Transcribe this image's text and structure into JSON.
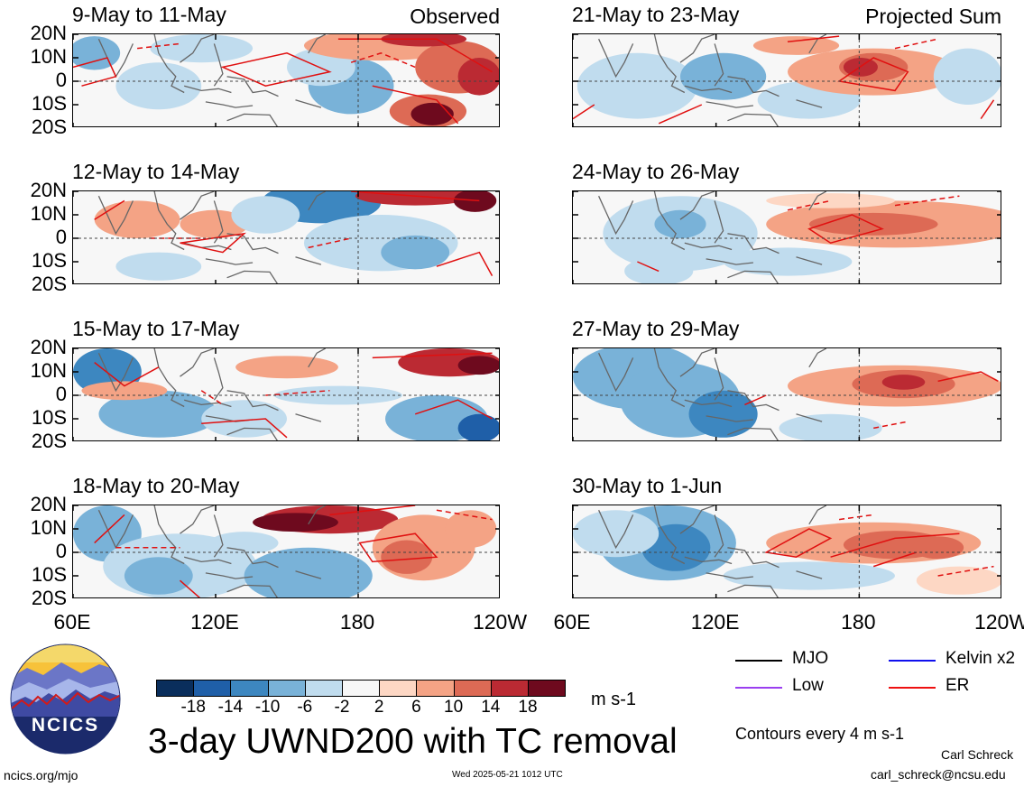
{
  "figure": {
    "title": "3-day UWND200 with TC removal",
    "units": "m s-1",
    "contour_note": "Contours every 4 m s-1",
    "footer_left": "ncics.org/mjo",
    "footer_center": "Wed 2025-05-21 1012 UTC",
    "author": "Carl Schreck",
    "email": "carl_schreck@ncsu.edu",
    "logo_text": "NCICS"
  },
  "axes": {
    "lat_labels": [
      "20N",
      "10N",
      "0",
      "10S",
      "20S"
    ],
    "lon_labels": [
      "60E",
      "120E",
      "180",
      "120W"
    ]
  },
  "panels": [
    {
      "title": "9-May to 11-May",
      "tag": "Observed",
      "kind": "observed"
    },
    {
      "title": "12-May to 14-May",
      "tag": "",
      "kind": "observed"
    },
    {
      "title": "15-May to 17-May",
      "tag": "",
      "kind": "observed"
    },
    {
      "title": "18-May to 20-May",
      "tag": "",
      "kind": "observed"
    },
    {
      "title": "21-May to 23-May",
      "tag": "Projected Sum",
      "kind": "projected"
    },
    {
      "title": "24-May to 26-May",
      "tag": "",
      "kind": "projected"
    },
    {
      "title": "27-May to 29-May",
      "tag": "",
      "kind": "projected"
    },
    {
      "title": "30-May to 1-Jun",
      "tag": "",
      "kind": "projected"
    }
  ],
  "colorbar": {
    "ticks": [
      "-18",
      "-14",
      "-10",
      "-6",
      "-2",
      "2",
      "6",
      "10",
      "14",
      "18"
    ],
    "colors": [
      "#0a2e5c",
      "#1f5fa8",
      "#3d87c0",
      "#79b2d8",
      "#c0dcee",
      "#f7f7f7",
      "#fdd7c4",
      "#f4a385",
      "#dd6a55",
      "#bb2a33",
      "#6e0a1e"
    ]
  },
  "legend": [
    {
      "label": "MJO",
      "color": "#000000"
    },
    {
      "label": "Kelvin x2",
      "color": "#1010ee"
    },
    {
      "label": "Low",
      "color": "#9a3ff0"
    },
    {
      "label": "ER",
      "color": "#ee1111"
    }
  ]
}
